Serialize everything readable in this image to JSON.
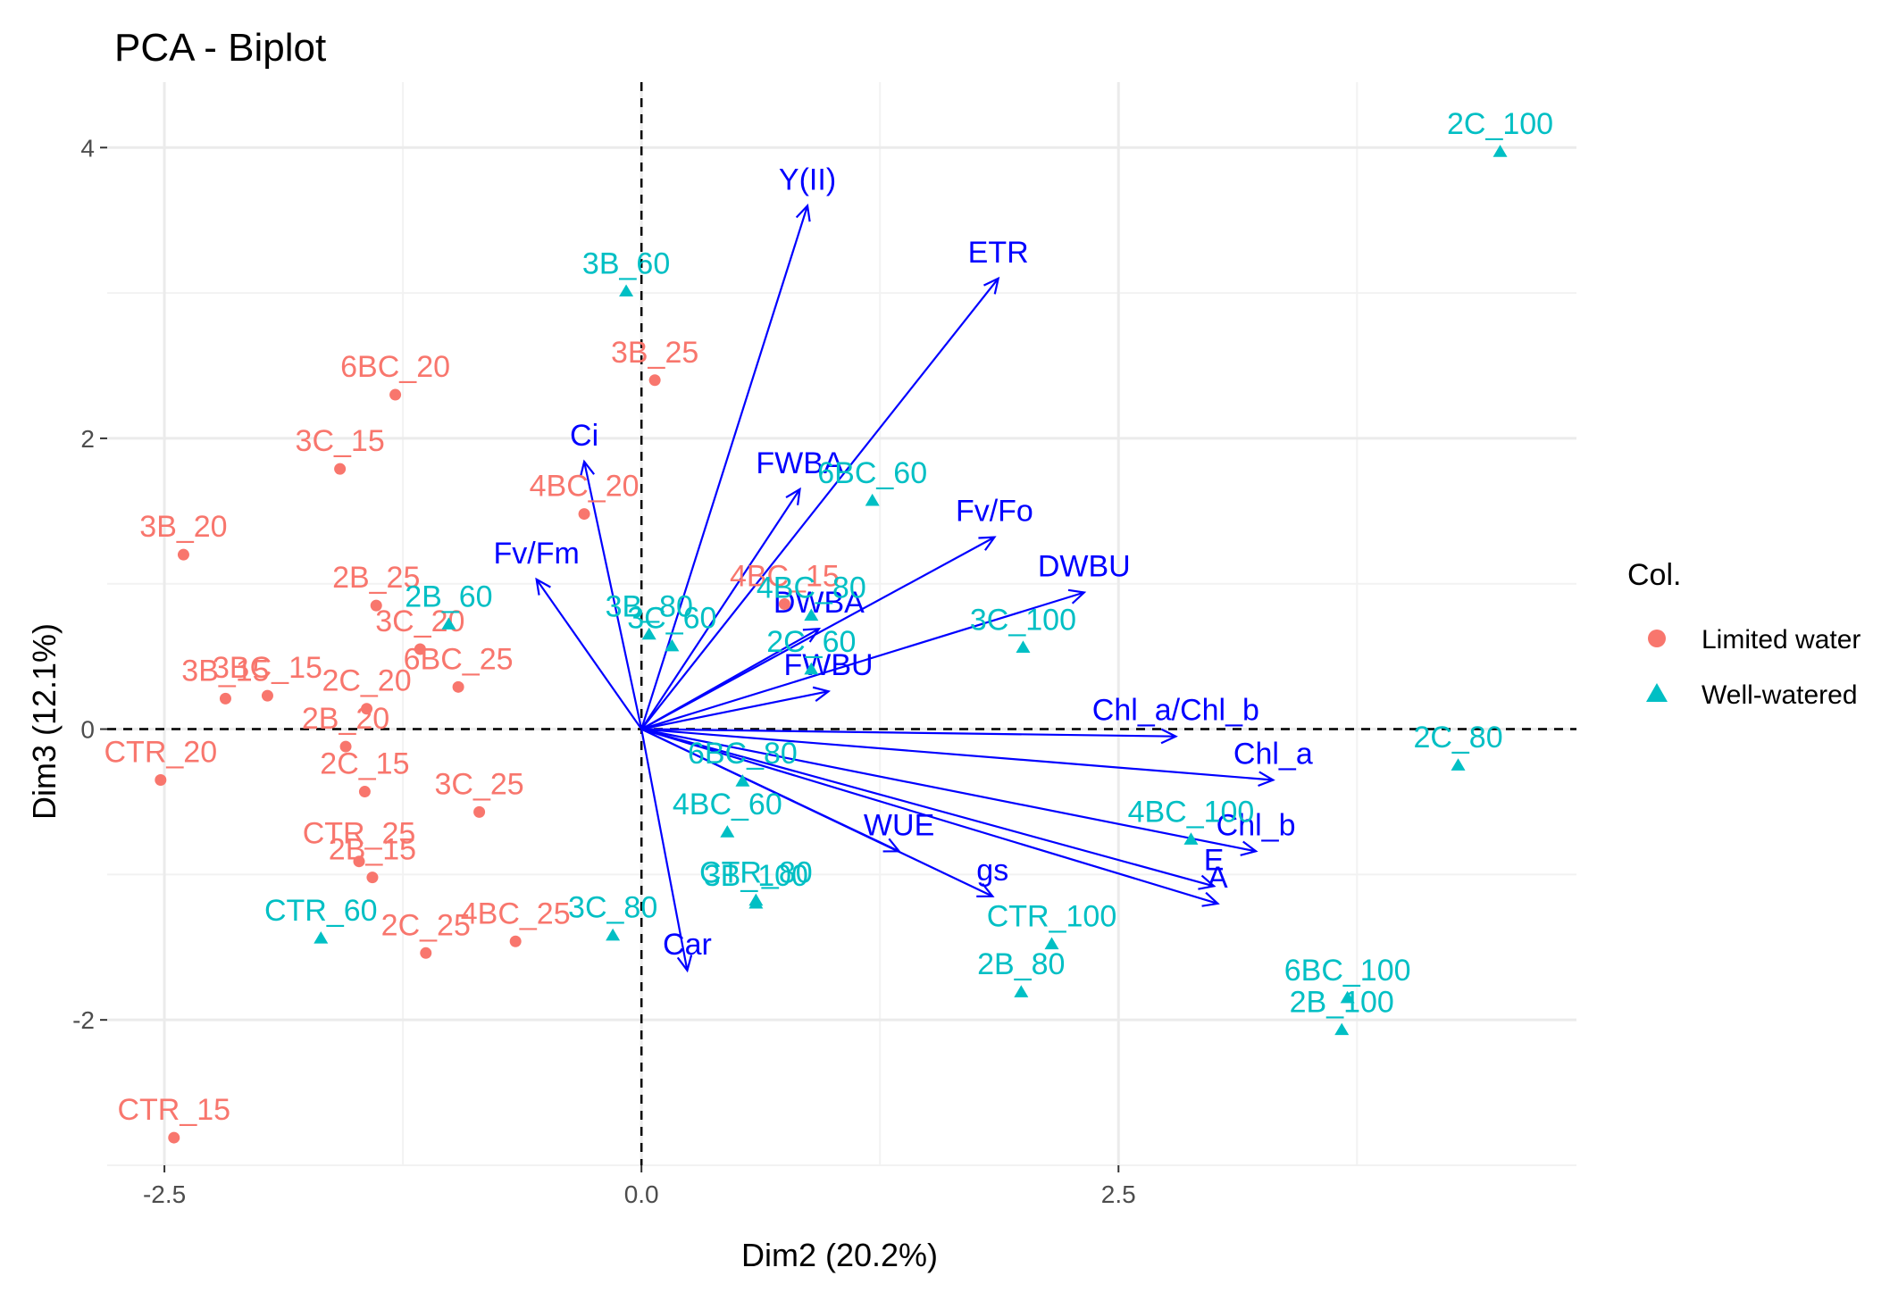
{
  "chart_data": {
    "type": "scatter",
    "title": "PCA - Biplot",
    "xlabel": "Dim2 (20.2%)",
    "ylabel": "Dim3 (12.1%)",
    "xlim": [
      -2.8,
      4.9
    ],
    "ylim": [
      -3.0,
      4.45
    ],
    "x_ticks": [
      {
        "value": -2.5,
        "label": "-2.5"
      },
      {
        "value": 0,
        "label": "0.0"
      },
      {
        "value": 2.5,
        "label": "2.5"
      }
    ],
    "y_ticks": [
      {
        "value": -2,
        "label": "-2"
      },
      {
        "value": 0,
        "label": "0"
      },
      {
        "value": 2,
        "label": "2"
      },
      {
        "value": 4,
        "label": "4"
      }
    ],
    "grid": true,
    "reference_lines": {
      "x": 0,
      "y": 0,
      "style": "dashed"
    },
    "legend": {
      "title": "Col.",
      "placement": "right",
      "entries": [
        {
          "label": "Limited water",
          "color": "#F8766D",
          "shape": "circle"
        },
        {
          "label": "Well-watered",
          "color": "#00BFC4",
          "shape": "triangle"
        }
      ]
    },
    "series": [
      {
        "name": "Limited water",
        "color": "#F8766D",
        "shape": "circle",
        "points": [
          {
            "label": "6BC_20",
            "x": -1.29,
            "y": 2.3
          },
          {
            "label": "3C_15",
            "x": -1.58,
            "y": 1.79
          },
          {
            "label": "3B_20",
            "x": -2.4,
            "y": 1.2
          },
          {
            "label": "3B_25",
            "x": 0.07,
            "y": 2.4
          },
          {
            "label": "4BC_20",
            "x": -0.3,
            "y": 1.48
          },
          {
            "label": "4BC_15",
            "x": 0.75,
            "y": 0.86
          },
          {
            "label": "2B_25",
            "x": -1.39,
            "y": 0.85
          },
          {
            "label": "3C_20",
            "x": -1.16,
            "y": 0.55
          },
          {
            "label": "6BC_25",
            "x": -0.96,
            "y": 0.29
          },
          {
            "label": "3B_15",
            "x": -2.18,
            "y": 0.21
          },
          {
            "label": "3BC_15",
            "x": -1.96,
            "y": 0.23
          },
          {
            "label": "2C_20",
            "x": -1.44,
            "y": 0.14
          },
          {
            "label": "2B_20",
            "x": -1.55,
            "y": -0.12
          },
          {
            "label": "CTR_20",
            "x": -2.52,
            "y": -0.35
          },
          {
            "label": "2C_15",
            "x": -1.45,
            "y": -0.43
          },
          {
            "label": "3C_25",
            "x": -0.85,
            "y": -0.57
          },
          {
            "label": "CTR_25",
            "x": -1.48,
            "y": -0.91
          },
          {
            "label": "2B_15",
            "x": -1.41,
            "y": -1.02
          },
          {
            "label": "4BC_25",
            "x": -0.66,
            "y": -1.46
          },
          {
            "label": "2C_25",
            "x": -1.13,
            "y": -1.54
          },
          {
            "label": "CTR_15",
            "x": -2.45,
            "y": -2.81
          }
        ]
      },
      {
        "name": "Well-watered",
        "color": "#00BFC4",
        "shape": "triangle",
        "points": [
          {
            "label": "2C_100",
            "x": 4.5,
            "y": 3.97
          },
          {
            "label": "3B_60",
            "x": -0.08,
            "y": 3.01
          },
          {
            "label": "6BC_60",
            "x": 1.21,
            "y": 1.57
          },
          {
            "label": "2B_60",
            "x": -1.01,
            "y": 0.72
          },
          {
            "label": "3B_80",
            "x": 0.04,
            "y": 0.65
          },
          {
            "label": "3C_60",
            "x": 0.16,
            "y": 0.57
          },
          {
            "label": "4BC_80",
            "x": 0.89,
            "y": 0.78
          },
          {
            "label": "2C_60",
            "x": 0.89,
            "y": 0.41
          },
          {
            "label": "3C_100",
            "x": 2.0,
            "y": 0.56
          },
          {
            "label": "2C_80",
            "x": 4.28,
            "y": -0.25
          },
          {
            "label": "6BC_80",
            "x": 0.53,
            "y": -0.36
          },
          {
            "label": "4BC_60",
            "x": 0.45,
            "y": -0.71
          },
          {
            "label": "4BC_100",
            "x": 2.88,
            "y": -0.76
          },
          {
            "label": "CTR_80",
            "x": 0.6,
            "y": -1.18
          },
          {
            "label": "3B_100",
            "x": 0.6,
            "y": -1.2
          },
          {
            "label": "CTR_60",
            "x": -1.68,
            "y": -1.44
          },
          {
            "label": "3C_80",
            "x": -0.15,
            "y": -1.42
          },
          {
            "label": "CTR_100",
            "x": 2.15,
            "y": -1.48
          },
          {
            "label": "2B_80",
            "x": 1.99,
            "y": -1.81
          },
          {
            "label": "6BC_100",
            "x": 3.7,
            "y": -1.85
          },
          {
            "label": "2B_100",
            "x": 3.67,
            "y": -2.07
          }
        ]
      }
    ],
    "loadings": {
      "color": "#0000FF",
      "vectors": [
        {
          "label": "Y(II)",
          "x": 0.87,
          "y": 3.6
        },
        {
          "label": "ETR",
          "x": 1.87,
          "y": 3.1
        },
        {
          "label": "Ci",
          "x": -0.3,
          "y": 1.84
        },
        {
          "label": "FWBA",
          "x": 0.83,
          "y": 1.65
        },
        {
          "label": "Fv/Fo",
          "x": 1.85,
          "y": 1.32
        },
        {
          "label": "Fv/Fm",
          "x": -0.55,
          "y": 1.03
        },
        {
          "label": "DWBU",
          "x": 2.32,
          "y": 0.94
        },
        {
          "label": "DWBA",
          "x": 0.93,
          "y": 0.69
        },
        {
          "label": "FWBU",
          "x": 0.98,
          "y": 0.26
        },
        {
          "label": "Chl_a/Chl_b",
          "x": 2.8,
          "y": -0.05
        },
        {
          "label": "Chl_a",
          "x": 3.31,
          "y": -0.35
        },
        {
          "label": "Chl_b",
          "x": 3.22,
          "y": -0.84
        },
        {
          "label": "E",
          "x": 3.0,
          "y": -1.08
        },
        {
          "label": "A",
          "x": 3.02,
          "y": -1.2
        },
        {
          "label": "WUE",
          "x": 1.35,
          "y": -0.84
        },
        {
          "label": "gs",
          "x": 1.84,
          "y": -1.15
        },
        {
          "label": "Car",
          "x": 0.24,
          "y": -1.66
        }
      ]
    }
  }
}
